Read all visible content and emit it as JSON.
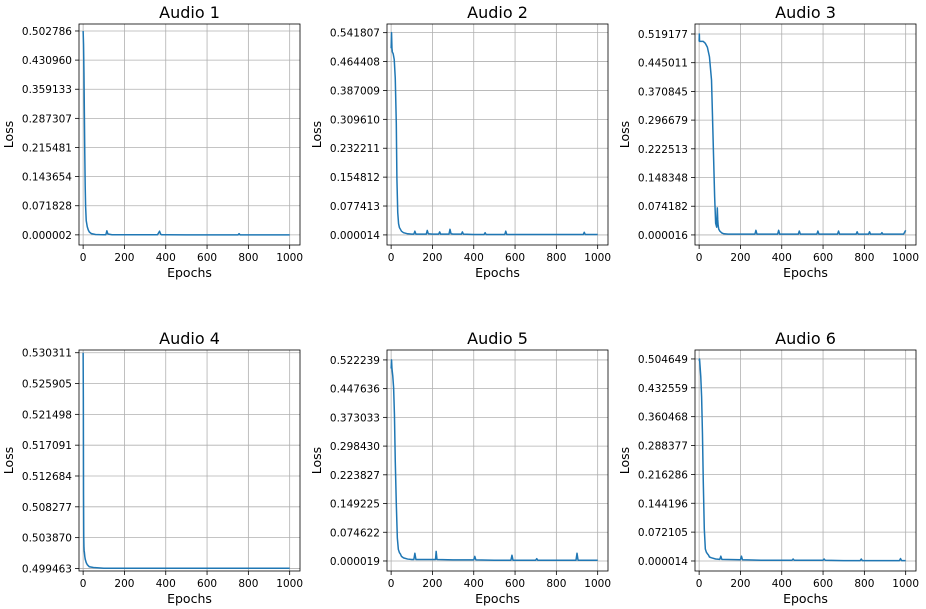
{
  "style": {
    "line_color": "#1f77b4",
    "grid": true
  },
  "chart_data": [
    {
      "type": "line",
      "title": "Audio 1",
      "xlabel": "Epochs",
      "ylabel": "Loss",
      "xlim": [
        -20,
        1050
      ],
      "ylim": [
        -0.025,
        0.52
      ],
      "xticks": [
        0,
        200,
        400,
        600,
        800,
        1000
      ],
      "xtick_labels": [
        "0",
        "200",
        "400",
        "600",
        "800",
        "1000"
      ],
      "yticks": [
        2e-06,
        0.071828,
        0.143654,
        0.215481,
        0.287307,
        0.359133,
        0.43096,
        0.502786
      ],
      "ytick_labels": [
        "0.000002",
        "0.071828",
        "0.143654",
        "0.215481",
        "0.287307",
        "0.359133",
        "0.430960",
        "0.502786"
      ],
      "series": [
        {
          "x": [
            0,
            2,
            4,
            6,
            8,
            10,
            12,
            15,
            20,
            25,
            30,
            40,
            60,
            80,
            100,
            110,
            115,
            120,
            140,
            200,
            300,
            360,
            370,
            375,
            380,
            400,
            500,
            600,
            700,
            750,
            755,
            760,
            800,
            900,
            1000
          ],
          "y": [
            0.502786,
            0.47,
            0.4,
            0.3,
            0.2,
            0.12,
            0.07,
            0.035,
            0.02,
            0.012,
            0.007,
            0.003,
            0.001,
            0.0005,
            0.0003,
            0.0003,
            0.01,
            0.002,
            0.0003,
            0.0002,
            0.0002,
            0.0002,
            0.009,
            0.002,
            0.0002,
            0.0002,
            0.0001,
            0.0001,
            0.0001,
            0.0001,
            0.003,
            0.0001,
            0.0001,
            0.0001,
            0.0001
          ]
        }
      ]
    },
    {
      "type": "line",
      "title": "Audio 2",
      "xlabel": "Epochs",
      "ylabel": "Loss",
      "xlim": [
        -20,
        1050
      ],
      "ylim": [
        -0.027,
        0.565
      ],
      "xticks": [
        0,
        200,
        400,
        600,
        800,
        1000
      ],
      "xtick_labels": [
        "0",
        "200",
        "400",
        "600",
        "800",
        "1000"
      ],
      "yticks": [
        1.4e-05,
        0.077413,
        0.154812,
        0.232211,
        0.30961,
        0.387009,
        0.464408,
        0.541807
      ],
      "ytick_labels": [
        "0.000014",
        "0.077413",
        "0.154812",
        "0.232211",
        "0.309610",
        "0.387009",
        "0.464408",
        "0.541807"
      ],
      "series": [
        {
          "x": [
            0,
            2,
            4,
            6,
            10,
            15,
            20,
            25,
            28,
            32,
            36,
            40,
            45,
            50,
            60,
            80,
            100,
            110,
            115,
            120,
            170,
            175,
            180,
            200,
            230,
            235,
            240,
            280,
            285,
            290,
            300,
            340,
            345,
            350,
            400,
            450,
            455,
            460,
            500,
            550,
            555,
            560,
            600,
            700,
            800,
            900,
            930,
            935,
            940,
            1000
          ],
          "y": [
            0.5,
            0.541807,
            0.5,
            0.49,
            0.485,
            0.47,
            0.42,
            0.3,
            0.15,
            0.06,
            0.03,
            0.02,
            0.015,
            0.01,
            0.006,
            0.003,
            0.002,
            0.002,
            0.01,
            0.002,
            0.002,
            0.012,
            0.003,
            0.002,
            0.002,
            0.008,
            0.002,
            0.002,
            0.015,
            0.003,
            0.002,
            0.002,
            0.008,
            0.002,
            0.001,
            0.001,
            0.006,
            0.001,
            0.001,
            0.001,
            0.01,
            0.001,
            0.001,
            0.001,
            0.001,
            0.001,
            0.001,
            0.007,
            0.001,
            0.001
          ]
        }
      ]
    },
    {
      "type": "line",
      "title": "Audio 3",
      "xlabel": "Epochs",
      "ylabel": "Loss",
      "xlim": [
        -20,
        1050
      ],
      "ylim": [
        -0.026,
        0.545
      ],
      "xticks": [
        0,
        200,
        400,
        600,
        800,
        1000
      ],
      "xtick_labels": [
        "0",
        "200",
        "400",
        "600",
        "800",
        "1000"
      ],
      "yticks": [
        1.6e-05,
        0.074182,
        0.148348,
        0.222513,
        0.296679,
        0.370845,
        0.445011,
        0.519177
      ],
      "ytick_labels": [
        "0.000016",
        "0.074182",
        "0.148348",
        "0.222513",
        "0.296679",
        "0.370845",
        "0.445011",
        "0.519177"
      ],
      "series": [
        {
          "x": [
            0,
            1,
            2,
            5,
            10,
            20,
            30,
            40,
            50,
            60,
            65,
            70,
            75,
            80,
            85,
            88,
            90,
            92,
            95,
            100,
            110,
            120,
            140,
            160,
            200,
            270,
            275,
            280,
            380,
            385,
            390,
            480,
            485,
            490,
            570,
            575,
            580,
            670,
            675,
            680,
            760,
            765,
            770,
            820,
            825,
            830,
            880,
            885,
            890,
            990,
            1000
          ],
          "y": [
            0.5,
            0.519177,
            0.5,
            0.5,
            0.5,
            0.5,
            0.495,
            0.485,
            0.46,
            0.4,
            0.3,
            0.2,
            0.1,
            0.03,
            0.02,
            0.07,
            0.04,
            0.025,
            0.015,
            0.01,
            0.005,
            0.003,
            0.002,
            0.002,
            0.002,
            0.002,
            0.012,
            0.002,
            0.002,
            0.012,
            0.002,
            0.002,
            0.01,
            0.002,
            0.002,
            0.01,
            0.002,
            0.002,
            0.01,
            0.002,
            0.002,
            0.008,
            0.002,
            0.002,
            0.008,
            0.002,
            0.002,
            0.006,
            0.002,
            0.002,
            0.012
          ]
        }
      ]
    },
    {
      "type": "line",
      "title": "Audio 4",
      "xlabel": "Epochs",
      "ylabel": "Loss",
      "xlim": [
        -20,
        1050
      ],
      "ylim": [
        0.4991,
        0.5307
      ],
      "xticks": [
        0,
        200,
        400,
        600,
        800,
        1000
      ],
      "xtick_labels": [
        "0",
        "200",
        "400",
        "600",
        "800",
        "1000"
      ],
      "yticks": [
        0.499463,
        0.50387,
        0.508277,
        0.512684,
        0.517091,
        0.521498,
        0.525905,
        0.530311
      ],
      "ytick_labels": [
        "0.499463",
        "0.503870",
        "0.508277",
        "0.512684",
        "0.517091",
        "0.521498",
        "0.525905",
        "0.530311"
      ],
      "series": [
        {
          "x": [
            0,
            1,
            2,
            3,
            4,
            5,
            6,
            8,
            10,
            15,
            20,
            30,
            50,
            100,
            200,
            400,
            600,
            800,
            1000
          ],
          "y": [
            0.5303,
            0.524,
            0.51,
            0.504,
            0.5025,
            0.502,
            0.5018,
            0.5012,
            0.5008,
            0.5003,
            0.5,
            0.4997,
            0.4996,
            0.4995,
            0.4995,
            0.4995,
            0.4995,
            0.4995,
            0.4995
          ]
        }
      ]
    },
    {
      "type": "line",
      "title": "Audio 5",
      "xlabel": "Epochs",
      "ylabel": "Loss",
      "xlim": [
        -20,
        1050
      ],
      "ylim": [
        -0.026,
        0.548
      ],
      "xticks": [
        0,
        200,
        400,
        600,
        800,
        1000
      ],
      "xtick_labels": [
        "0",
        "200",
        "400",
        "600",
        "800",
        "1000"
      ],
      "yticks": [
        1.9e-05,
        0.074622,
        0.149225,
        0.223827,
        0.29843,
        0.373033,
        0.447636,
        0.522239
      ],
      "ytick_labels": [
        "0.000019",
        "0.074622",
        "0.149225",
        "0.223827",
        "0.298430",
        "0.373033",
        "0.447636",
        "0.522239"
      ],
      "series": [
        {
          "x": [
            0,
            2,
            4,
            8,
            12,
            16,
            20,
            25,
            30,
            35,
            40,
            45,
            50,
            60,
            80,
            100,
            110,
            115,
            120,
            200,
            215,
            218,
            222,
            300,
            400,
            405,
            410,
            500,
            580,
            585,
            590,
            700,
            705,
            710,
            800,
            895,
            900,
            905,
            1000
          ],
          "y": [
            0.5,
            0.522239,
            0.5,
            0.48,
            0.45,
            0.38,
            0.26,
            0.15,
            0.06,
            0.03,
            0.022,
            0.018,
            0.012,
            0.008,
            0.005,
            0.004,
            0.004,
            0.02,
            0.004,
            0.004,
            0.004,
            0.025,
            0.004,
            0.003,
            0.003,
            0.012,
            0.003,
            0.002,
            0.002,
            0.015,
            0.002,
            0.002,
            0.006,
            0.002,
            0.002,
            0.002,
            0.02,
            0.002,
            0.002
          ]
        }
      ]
    },
    {
      "type": "line",
      "title": "Audio 6",
      "xlabel": "Epochs",
      "ylabel": "Loss",
      "xlim": [
        -20,
        1050
      ],
      "ylim": [
        -0.025,
        0.527
      ],
      "xticks": [
        0,
        200,
        400,
        600,
        800,
        1000
      ],
      "xtick_labels": [
        "0",
        "200",
        "400",
        "600",
        "800",
        "1000"
      ],
      "yticks": [
        1.4e-05,
        0.072105,
        0.144196,
        0.216286,
        0.288377,
        0.360468,
        0.432559,
        0.504649
      ],
      "ytick_labels": [
        "0.000014",
        "0.072105",
        "0.144196",
        "0.216286",
        "0.288377",
        "0.360468",
        "0.432559",
        "0.504649"
      ],
      "series": [
        {
          "x": [
            0,
            2,
            4,
            8,
            12,
            16,
            20,
            25,
            30,
            35,
            40,
            45,
            50,
            60,
            80,
            100,
            105,
            110,
            200,
            205,
            210,
            300,
            400,
            450,
            455,
            460,
            500,
            600,
            605,
            610,
            700,
            780,
            785,
            790,
            900,
            970,
            975,
            980,
            1000
          ],
          "y": [
            0.5,
            0.504649,
            0.49,
            0.46,
            0.41,
            0.32,
            0.2,
            0.08,
            0.03,
            0.022,
            0.018,
            0.015,
            0.01,
            0.008,
            0.005,
            0.004,
            0.012,
            0.004,
            0.003,
            0.012,
            0.003,
            0.002,
            0.002,
            0.002,
            0.005,
            0.002,
            0.002,
            0.002,
            0.005,
            0.002,
            0.001,
            0.001,
            0.005,
            0.001,
            0.001,
            0.001,
            0.006,
            0.001,
            0.001
          ]
        }
      ]
    }
  ]
}
